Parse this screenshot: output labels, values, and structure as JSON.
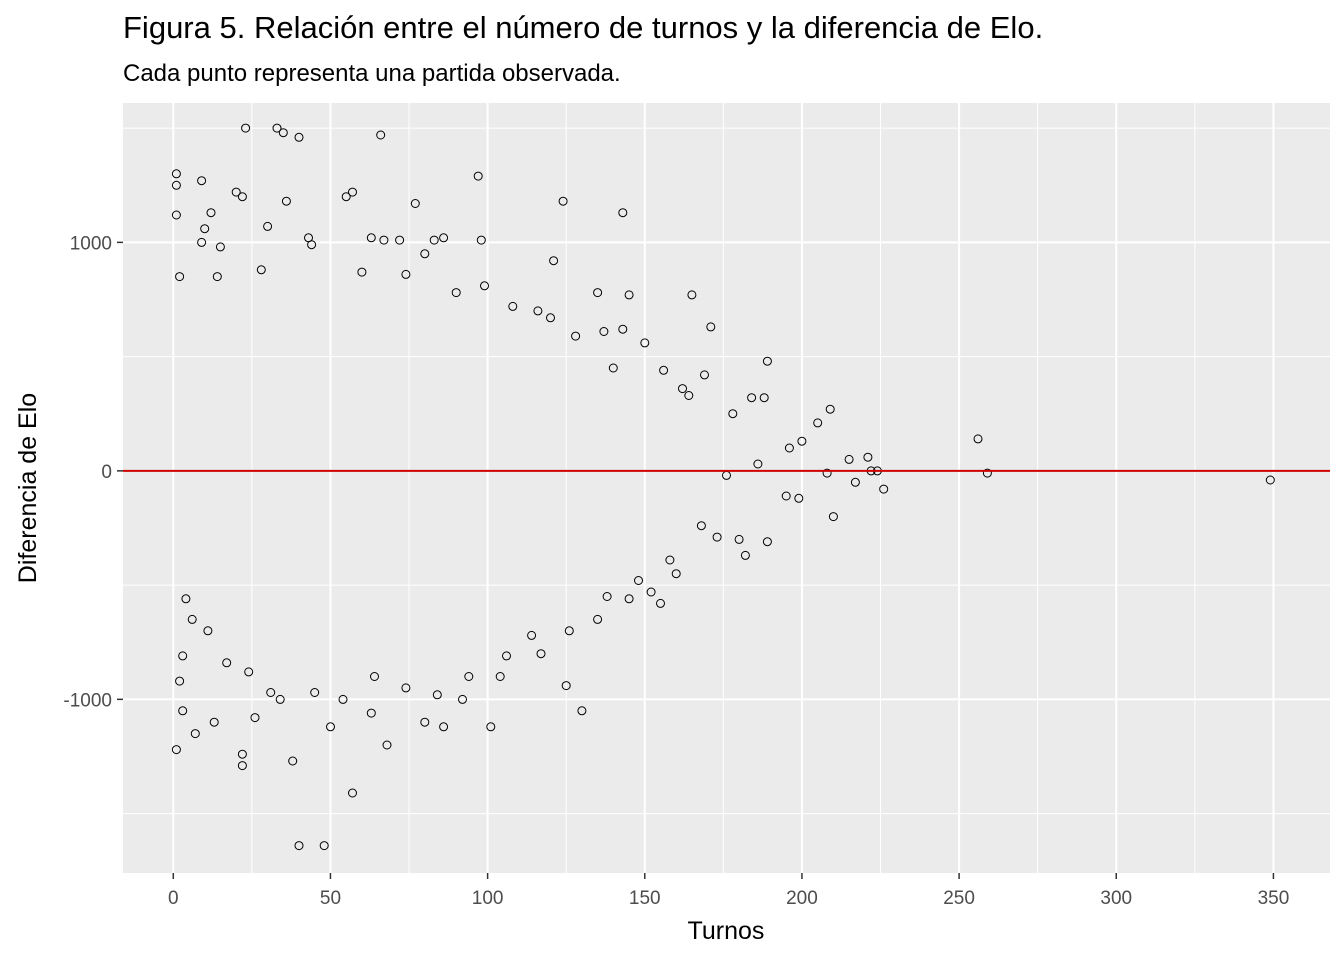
{
  "chart_data": {
    "type": "scatter",
    "title": "Figura 5. Relación entre el número de turnos y la diferencia de Elo.",
    "subtitle": "Cada punto representa una partida observada.",
    "xlabel": "Turnos",
    "ylabel": "Diferencia de Elo",
    "xlim": [
      -16,
      368
    ],
    "ylim": [
      -1760,
      1610
    ],
    "x_ticks": [
      0,
      50,
      100,
      150,
      200,
      250,
      300,
      350
    ],
    "y_ticks": [
      -1000,
      0,
      1000
    ],
    "x_tick_labels": [
      "0",
      "50",
      "100",
      "150",
      "200",
      "250",
      "300",
      "350"
    ],
    "y_tick_labels": [
      "-1000",
      "0",
      "1000"
    ],
    "grid": true,
    "reference_line": {
      "y": 0,
      "color": "#cc0000"
    },
    "point_style": {
      "shape": "open-circle",
      "color": "#000000"
    },
    "points": [
      [
        23,
        1500
      ],
      [
        33,
        1500
      ],
      [
        35,
        1480
      ],
      [
        40,
        1460
      ],
      [
        66,
        1470
      ],
      [
        97,
        1290
      ],
      [
        1,
        1300
      ],
      [
        1,
        1250
      ],
      [
        9,
        1270
      ],
      [
        20,
        1220
      ],
      [
        22,
        1200
      ],
      [
        36,
        1180
      ],
      [
        55,
        1200
      ],
      [
        57,
        1220
      ],
      [
        124,
        1180
      ],
      [
        77,
        1170
      ],
      [
        143,
        1130
      ],
      [
        1,
        1120
      ],
      [
        12,
        1130
      ],
      [
        10,
        1060
      ],
      [
        30,
        1070
      ],
      [
        43,
        1020
      ],
      [
        63,
        1020
      ],
      [
        67,
        1010
      ],
      [
        72,
        1010
      ],
      [
        83,
        1010
      ],
      [
        86,
        1020
      ],
      [
        98,
        1010
      ],
      [
        121,
        920
      ],
      [
        120,
        670
      ],
      [
        145,
        770
      ],
      [
        165,
        770
      ],
      [
        135,
        780
      ],
      [
        137,
        610
      ],
      [
        143,
        620
      ],
      [
        150,
        560
      ],
      [
        171,
        630
      ],
      [
        169,
        420
      ],
      [
        164,
        330
      ],
      [
        184,
        320
      ],
      [
        189,
        480
      ],
      [
        188,
        320
      ],
      [
        209,
        270
      ],
      [
        205,
        210
      ],
      [
        215,
        50
      ],
      [
        221,
        60
      ],
      [
        222,
        0
      ],
      [
        224,
        0
      ],
      [
        226,
        -80
      ],
      [
        217,
        -50
      ],
      [
        208,
        -10
      ],
      [
        210,
        -200
      ],
      [
        199,
        -120
      ],
      [
        195,
        -110
      ],
      [
        189,
        -310
      ],
      [
        180,
        -300
      ],
      [
        173,
        -290
      ],
      [
        182,
        -370
      ],
      [
        160,
        -450
      ],
      [
        155,
        -580
      ],
      [
        152,
        -530
      ],
      [
        145,
        -560
      ],
      [
        135,
        -650
      ],
      [
        130,
        -1050
      ],
      [
        125,
        -940
      ],
      [
        117,
        -800
      ],
      [
        101,
        -1120
      ],
      [
        104,
        -900
      ],
      [
        92,
        -1000
      ],
      [
        86,
        -1120
      ],
      [
        80,
        -1100
      ],
      [
        63,
        -1060
      ],
      [
        68,
        -1200
      ],
      [
        57,
        -1410
      ],
      [
        50,
        -1120
      ],
      [
        48,
        -1640
      ],
      [
        40,
        -1640
      ],
      [
        38,
        -1270
      ],
      [
        22,
        -1240
      ],
      [
        22,
        -1290
      ],
      [
        1,
        -1220
      ],
      [
        3,
        -1050
      ],
      [
        7,
        -1150
      ],
      [
        13,
        -1100
      ],
      [
        2,
        -920
      ],
      [
        3,
        -810
      ],
      [
        26,
        -1080
      ],
      [
        31,
        -970
      ],
      [
        256,
        140
      ],
      [
        259,
        -10
      ],
      [
        349,
        -40
      ],
      [
        9,
        1000
      ],
      [
        15,
        980
      ],
      [
        2,
        850
      ],
      [
        14,
        850
      ],
      [
        28,
        880
      ],
      [
        44,
        990
      ],
      [
        60,
        870
      ],
      [
        74,
        860
      ],
      [
        80,
        950
      ],
      [
        90,
        780
      ],
      [
        99,
        810
      ],
      [
        108,
        720
      ],
      [
        116,
        700
      ],
      [
        128,
        590
      ],
      [
        140,
        450
      ],
      [
        156,
        440
      ],
      [
        162,
        360
      ],
      [
        178,
        250
      ],
      [
        196,
        100
      ],
      [
        200,
        130
      ],
      [
        186,
        30
      ],
      [
        176,
        -20
      ],
      [
        168,
        -240
      ],
      [
        158,
        -390
      ],
      [
        148,
        -480
      ],
      [
        138,
        -550
      ],
      [
        126,
        -700
      ],
      [
        114,
        -720
      ],
      [
        106,
        -810
      ],
      [
        94,
        -900
      ],
      [
        84,
        -980
      ],
      [
        74,
        -950
      ],
      [
        64,
        -900
      ],
      [
        54,
        -1000
      ],
      [
        45,
        -970
      ],
      [
        34,
        -1000
      ],
      [
        24,
        -880
      ],
      [
        17,
        -840
      ],
      [
        11,
        -700
      ],
      [
        6,
        -650
      ],
      [
        4,
        -560
      ]
    ]
  }
}
